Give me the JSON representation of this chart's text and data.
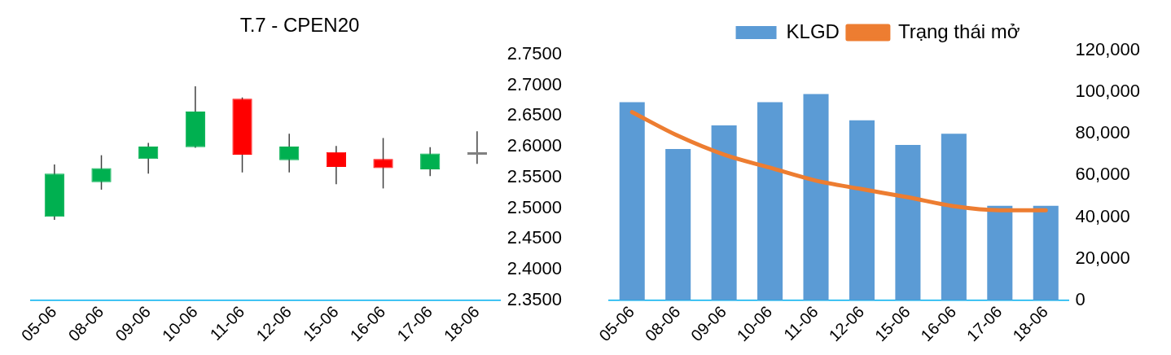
{
  "chart_data": [
    {
      "type": "candlestick",
      "title": "T.7 - CPEN20",
      "categories": [
        "05-06",
        "08-06",
        "09-06",
        "10-06",
        "11-06",
        "12-06",
        "15-06",
        "16-06",
        "17-06",
        "18-06"
      ],
      "ohlc": [
        [
          2.486,
          2.571,
          2.481,
          2.556
        ],
        [
          2.542,
          2.586,
          2.53,
          2.565
        ],
        [
          2.58,
          2.606,
          2.556,
          2.6
        ],
        [
          2.599,
          2.698,
          2.598,
          2.657
        ],
        [
          2.678,
          2.68,
          2.558,
          2.587
        ],
        [
          2.578,
          2.621,
          2.558,
          2.6
        ],
        [
          2.591,
          2.601,
          2.539,
          2.567
        ],
        [
          2.58,
          2.614,
          2.532,
          2.565
        ],
        [
          2.563,
          2.599,
          2.552,
          2.589
        ],
        [
          2.587,
          2.625,
          2.572,
          2.587
        ]
      ],
      "colors": [
        "#00b050",
        "#00b050",
        "#00b050",
        "#00b050",
        "#ff0000",
        "#00b050",
        "#ff0000",
        "#ff0000",
        "#00b050",
        "#808080"
      ],
      "ylim": [
        2.35,
        2.75
      ],
      "yticks": [
        {
          "value": 2.35,
          "label": "2.3500"
        },
        {
          "value": 2.4,
          "label": "2.4000"
        },
        {
          "value": 2.45,
          "label": "2.4500"
        },
        {
          "value": 2.5,
          "label": "2.5000"
        },
        {
          "value": 2.55,
          "label": "2.5500"
        },
        {
          "value": 2.6,
          "label": "2.6000"
        },
        {
          "value": 2.65,
          "label": "2.6500"
        },
        {
          "value": 2.7,
          "label": "2.7000"
        },
        {
          "value": 2.75,
          "label": "2.7500"
        }
      ],
      "grid": false,
      "legend": false
    },
    {
      "type": "bar",
      "categories": [
        "05-06",
        "08-06",
        "09-06",
        "10-06",
        "11-06",
        "12-06",
        "15-06",
        "16-06",
        "17-06",
        "18-06"
      ],
      "series": [
        {
          "name": "KLGD",
          "color": "#5b9bd5",
          "values": [
            95200,
            72700,
            84000,
            95200,
            99100,
            86500,
            74600,
            80000,
            45400,
            45400
          ]
        },
        {
          "name": "Trạng thái mở",
          "type": "line",
          "color": "#ed7d31",
          "values": [
            90400,
            79000,
            70000,
            63700,
            57500,
            53400,
            49500,
            45200,
            43300,
            43300
          ]
        }
      ],
      "ylim": [
        0,
        120000
      ],
      "yticks": [
        0,
        {
          "value": 20000,
          "label": "20,000"
        },
        {
          "value": 40000,
          "label": "40,000"
        },
        {
          "value": 60000,
          "label": "60,000"
        },
        {
          "value": 80000,
          "label": "80,000"
        },
        {
          "value": 100000,
          "label": "100,000"
        },
        {
          "value": 120000,
          "label": "120,000"
        }
      ],
      "grid": false,
      "legend": "top"
    }
  ]
}
